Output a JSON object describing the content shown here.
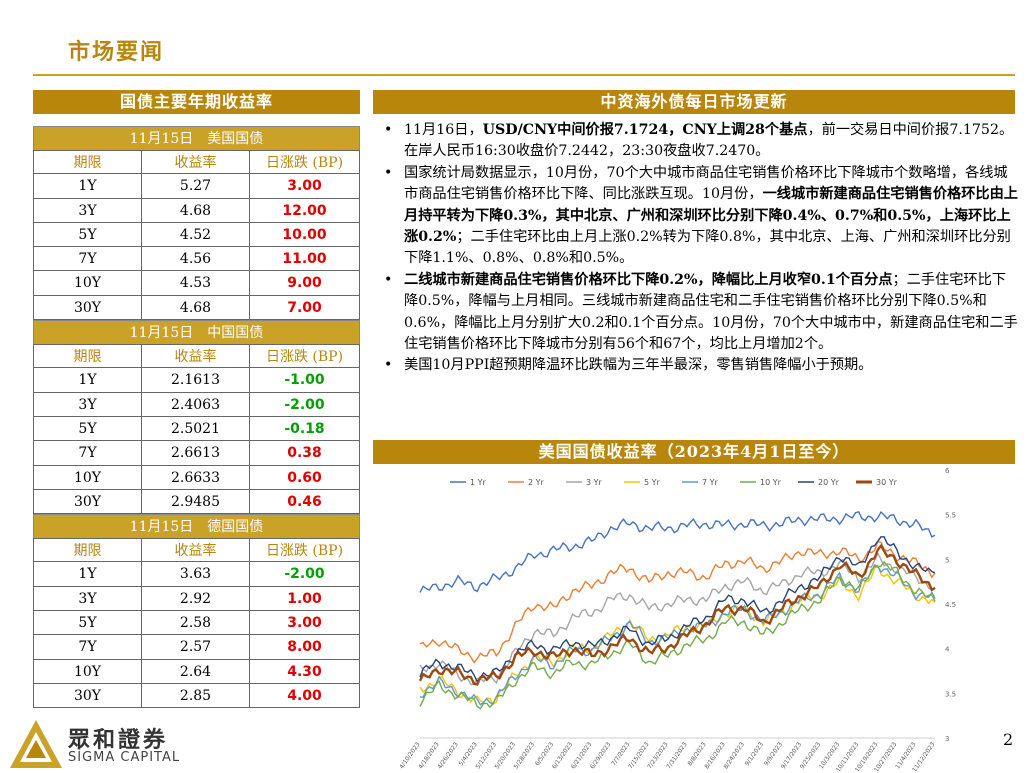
{
  "page": {
    "title": "市场要闻",
    "page_number": "2"
  },
  "bond_panel": {
    "header": "国债主要年期收益率",
    "columns": [
      "期限",
      "收益率",
      "日涨跌 (BP)"
    ],
    "sections": [
      {
        "title": "11月15日　美国国债",
        "rows": [
          {
            "term": "1Y",
            "yield": "5.27",
            "change": "3.00",
            "dir": "up"
          },
          {
            "term": "3Y",
            "yield": "4.68",
            "change": "12.00",
            "dir": "up"
          },
          {
            "term": "5Y",
            "yield": "4.52",
            "change": "10.00",
            "dir": "up"
          },
          {
            "term": "7Y",
            "yield": "4.56",
            "change": "11.00",
            "dir": "up"
          },
          {
            "term": "10Y",
            "yield": "4.53",
            "change": "9.00",
            "dir": "up"
          },
          {
            "term": "30Y",
            "yield": "4.68",
            "change": "7.00",
            "dir": "up"
          }
        ]
      },
      {
        "title": "11月15日　中国国债",
        "rows": [
          {
            "term": "1Y",
            "yield": "2.1613",
            "change": "-1.00",
            "dir": "down"
          },
          {
            "term": "3Y",
            "yield": "2.4063",
            "change": "-2.00",
            "dir": "down"
          },
          {
            "term": "5Y",
            "yield": "2.5021",
            "change": "-0.18",
            "dir": "down"
          },
          {
            "term": "7Y",
            "yield": "2.6613",
            "change": "0.38",
            "dir": "up"
          },
          {
            "term": "10Y",
            "yield": "2.6633",
            "change": "0.60",
            "dir": "up"
          },
          {
            "term": "30Y",
            "yield": "2.9485",
            "change": "0.46",
            "dir": "up"
          }
        ]
      },
      {
        "title": "11月15日　德国国债",
        "rows": [
          {
            "term": "1Y",
            "yield": "3.63",
            "change": "-2.00",
            "dir": "down"
          },
          {
            "term": "3Y",
            "yield": "2.92",
            "change": "1.00",
            "dir": "up"
          },
          {
            "term": "5Y",
            "yield": "2.58",
            "change": "3.00",
            "dir": "up"
          },
          {
            "term": "7Y",
            "yield": "2.57",
            "change": "8.00",
            "dir": "up"
          },
          {
            "term": "10Y",
            "yield": "2.64",
            "change": "4.30",
            "dir": "up"
          },
          {
            "term": "30Y",
            "yield": "2.85",
            "change": "4.00",
            "dir": "up"
          }
        ]
      }
    ]
  },
  "news": {
    "header": "中资海外债每日市场更新",
    "items": [
      [
        {
          "t": "11月16日，",
          "b": false
        },
        {
          "t": "USD/CNY中间价报7.1724，CNY上调28个基点",
          "b": true
        },
        {
          "t": "，前一交易日中间价报7.1752。在岸人民币16:30收盘价7.2442，23:30夜盘收7.2470。",
          "b": false
        }
      ],
      [
        {
          "t": "国家统计局数据显示，10月份，70个大中城市商品住宅销售价格环比下降城市个数略增，各线城市商品住宅销售价格环比下降、同比涨跌互现。10月份，",
          "b": false
        },
        {
          "t": "一线城市新建商品住宅销售价格环比由上月持平转为下降0.3%，其中北京、广州和深圳环比分别下降0.4%、0.7%和0.5%，上海环比上涨0.2%",
          "b": true
        },
        {
          "t": "；二手住宅环比由上月上涨0.2%转为下降0.8%，其中北京、上海、广州和深圳环比分别下降1.1%、0.8%、0.8%和0.5%。",
          "b": false
        }
      ],
      [
        {
          "t": "二线城市新建商品住宅销售价格环比下降0.2%，降幅比上月收窄0.1个百分点",
          "b": true
        },
        {
          "t": "；二手住宅环比下降0.5%，降幅与上月相同。三线城市新建商品住宅和二手住宅销售价格环比分别下降0.5%和0.6%，降幅比上月分别扩大0.2和0.1个百分点。10月份，70个大中城市中，新建商品住宅和二手住宅销售价格环比下降城市分别有56个和67个，均比上月增加2个。",
          "b": false
        }
      ],
      [
        {
          "t": "美国10月PPI超预期降温环比跌幅为三年半最深，零售销售降幅小于预期。",
          "b": false
        }
      ]
    ]
  },
  "chart_header": "美国国债收益率（2023年4月1日至今）",
  "chart_data": {
    "type": "line",
    "x": [
      "4/10/2023",
      "4/18/2023",
      "4/26/2023",
      "5/4/2023",
      "5/12/2023",
      "5/20/2023",
      "5/28/2023",
      "6/5/2023",
      "6/13/2023",
      "6/21/2023",
      "6/29/2023",
      "7/7/2023",
      "7/15/2023",
      "7/23/2023",
      "7/31/2023",
      "8/8/2023",
      "8/16/2023",
      "8/24/2023",
      "9/1/2023",
      "9/9/2023",
      "9/17/2023",
      "9/25/2023",
      "10/3/2023",
      "10/11/2023",
      "10/19/2023",
      "10/27/2023",
      "11/4/2023",
      "11/12/2023"
    ],
    "x_tick_labels": [
      "4/10/2023",
      "4/18/2023",
      "4/26/2023",
      "5/4/2023",
      "5/12/2023",
      "5/20/2023",
      "5/28/2023",
      "6/5/2023",
      "6/13/2023",
      "6/21/2023",
      "6/29/2023",
      "7/7/2023",
      "7/15/2023",
      "7/23/2023",
      "7/31/2023",
      "8/8/2023",
      "8/16/2023",
      "8/24/2023",
      "9/1/2023",
      "9/9/2023",
      "9/17/2023",
      "9/25/2023",
      "10/3/2023",
      "10/11/2023",
      "10/19/2023",
      "10/27/2023",
      "11/4/2023",
      "11/12/2023"
    ],
    "ylim": [
      3,
      6
    ],
    "yticks": [
      "3",
      "3.5",
      "4",
      "4.5",
      "5",
      "5.5",
      "6"
    ],
    "grid": false,
    "legend_position": "top",
    "series": [
      {
        "name": "1 Yr",
        "color": "#4472c4",
        "values": [
          4.63,
          4.7,
          4.75,
          4.7,
          4.78,
          4.9,
          5.05,
          5.1,
          5.15,
          5.2,
          5.35,
          5.4,
          5.35,
          5.35,
          5.38,
          5.4,
          5.38,
          5.4,
          5.38,
          5.4,
          5.45,
          5.45,
          5.46,
          5.48,
          5.48,
          5.45,
          5.38,
          5.27
        ]
      },
      {
        "name": "2 Yr",
        "color": "#ed7d31",
        "values": [
          4.0,
          4.1,
          3.98,
          3.9,
          3.95,
          4.25,
          4.5,
          4.45,
          4.65,
          4.7,
          4.85,
          4.9,
          4.75,
          4.85,
          4.85,
          4.8,
          4.95,
          4.98,
          4.9,
          4.98,
          5.1,
          5.05,
          5.1,
          5.0,
          5.15,
          5.05,
          4.95,
          4.85
        ]
      },
      {
        "name": "3 Yr",
        "color": "#a5a5a5",
        "values": [
          3.75,
          3.85,
          3.7,
          3.62,
          3.68,
          3.95,
          4.2,
          4.15,
          4.35,
          4.4,
          4.55,
          4.6,
          4.45,
          4.5,
          4.55,
          4.55,
          4.7,
          4.75,
          4.65,
          4.72,
          4.85,
          4.85,
          4.95,
          4.8,
          5.0,
          4.9,
          4.8,
          4.68
        ]
      },
      {
        "name": "5 Yr",
        "color": "#ffc000",
        "values": [
          3.55,
          3.65,
          3.52,
          3.4,
          3.45,
          3.7,
          3.9,
          3.85,
          4.0,
          4.0,
          4.15,
          4.3,
          4.1,
          4.15,
          4.25,
          4.25,
          4.4,
          4.45,
          4.3,
          4.4,
          4.55,
          4.6,
          4.75,
          4.6,
          4.9,
          4.75,
          4.6,
          4.52
        ]
      },
      {
        "name": "7 Yr",
        "color": "#5b9bd5",
        "values": [
          3.5,
          3.62,
          3.52,
          3.4,
          3.45,
          3.7,
          3.88,
          3.82,
          3.98,
          3.98,
          4.12,
          4.28,
          4.08,
          4.12,
          4.22,
          4.25,
          4.4,
          4.45,
          4.3,
          4.42,
          4.55,
          4.62,
          4.8,
          4.65,
          4.95,
          4.8,
          4.62,
          4.56
        ]
      },
      {
        "name": "10 Yr",
        "color": "#70ad47",
        "values": [
          3.42,
          3.58,
          3.48,
          3.38,
          3.4,
          3.65,
          3.8,
          3.72,
          3.85,
          3.82,
          3.95,
          4.05,
          3.85,
          3.92,
          4.05,
          4.1,
          4.3,
          4.3,
          4.15,
          4.3,
          4.45,
          4.55,
          4.8,
          4.65,
          4.98,
          4.85,
          4.65,
          4.53
        ]
      },
      {
        "name": "20 Yr",
        "color": "#264478",
        "values": [
          3.72,
          3.85,
          3.78,
          3.7,
          3.72,
          3.95,
          4.05,
          3.98,
          4.08,
          4.02,
          4.12,
          4.22,
          4.05,
          4.12,
          4.25,
          4.35,
          4.55,
          4.55,
          4.4,
          4.55,
          4.7,
          4.8,
          5.05,
          4.9,
          5.25,
          5.1,
          4.9,
          4.85
        ]
      },
      {
        "name": "30 Yr",
        "color": "#9e480e",
        "values": [
          3.62,
          3.78,
          3.72,
          3.65,
          3.68,
          3.9,
          3.98,
          3.9,
          4.0,
          3.92,
          4.02,
          4.12,
          3.95,
          4.02,
          4.15,
          4.28,
          4.45,
          4.45,
          4.3,
          4.45,
          4.6,
          4.7,
          4.95,
          4.8,
          5.1,
          5.0,
          4.82,
          4.68
        ]
      }
    ]
  },
  "logo": {
    "cn": "眾和證券",
    "en": "SIGMA CAPITAL"
  },
  "colors": {
    "gold": "#b8860b",
    "light_gold": "#c9a227",
    "up": "#e00000",
    "down": "#00a000"
  }
}
